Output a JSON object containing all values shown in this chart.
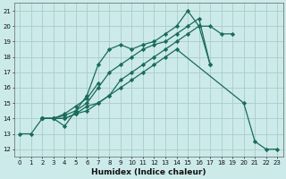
{
  "xlabel": "Humidex (Indice chaleur)",
  "bg_color": "#cceaea",
  "grid_color": "#aacccc",
  "line_color": "#1a6b5a",
  "xlim": [
    -0.5,
    23.5
  ],
  "ylim": [
    11.5,
    21.5
  ],
  "xticks": [
    0,
    1,
    2,
    3,
    4,
    5,
    6,
    7,
    8,
    9,
    10,
    11,
    12,
    13,
    14,
    15,
    16,
    17,
    18,
    19,
    20,
    21,
    22,
    23
  ],
  "yticks": [
    12,
    13,
    14,
    15,
    16,
    17,
    18,
    19,
    20,
    21
  ],
  "series": [
    {
      "x": [
        0,
        1,
        2,
        3,
        4,
        5,
        6,
        7,
        8,
        9,
        10,
        11,
        12,
        13,
        14,
        15,
        16,
        17,
        18,
        19
      ],
      "y": [
        13,
        13,
        14,
        14,
        13.5,
        14.5,
        15.5,
        17.5,
        18.5,
        18.8,
        18.5,
        18.8,
        19,
        19.5,
        20,
        21,
        20,
        20,
        19.5,
        19.5
      ]
    },
    {
      "x": [
        2,
        3,
        4,
        5,
        6,
        7,
        8,
        9,
        10,
        11,
        12,
        13,
        14,
        15,
        16,
        17
      ],
      "y": [
        14,
        14,
        14.2,
        14.5,
        15,
        16,
        17,
        17.5,
        18,
        18.5,
        18.8,
        19,
        19.5,
        20,
        20.5,
        17.5
      ]
    },
    {
      "x": [
        2,
        3,
        4,
        5,
        6,
        7
      ],
      "y": [
        14,
        14,
        14.3,
        14.8,
        15.3,
        16.3
      ]
    },
    {
      "x": [
        2,
        3,
        4,
        5,
        6,
        7,
        8,
        9,
        10,
        11,
        12,
        13,
        14,
        20,
        21,
        22,
        23
      ],
      "y": [
        14,
        14,
        14,
        14.3,
        14.5,
        15,
        15.5,
        16,
        16.5,
        17,
        17.5,
        18,
        18.5,
        15,
        12.5,
        12,
        12
      ]
    },
    {
      "x": [
        2,
        3,
        4,
        5,
        6,
        7,
        8,
        9,
        10,
        11,
        12,
        13,
        14,
        15,
        16,
        17
      ],
      "y": [
        14,
        14,
        14,
        14.3,
        14.8,
        15,
        15.5,
        16.5,
        17,
        17.5,
        18,
        18.5,
        19,
        19.5,
        20,
        17.5
      ]
    }
  ],
  "marker": "D",
  "markersize": 2.2,
  "linewidth": 0.9,
  "tick_fontsize": 5.0,
  "xlabel_fontsize": 6.5
}
